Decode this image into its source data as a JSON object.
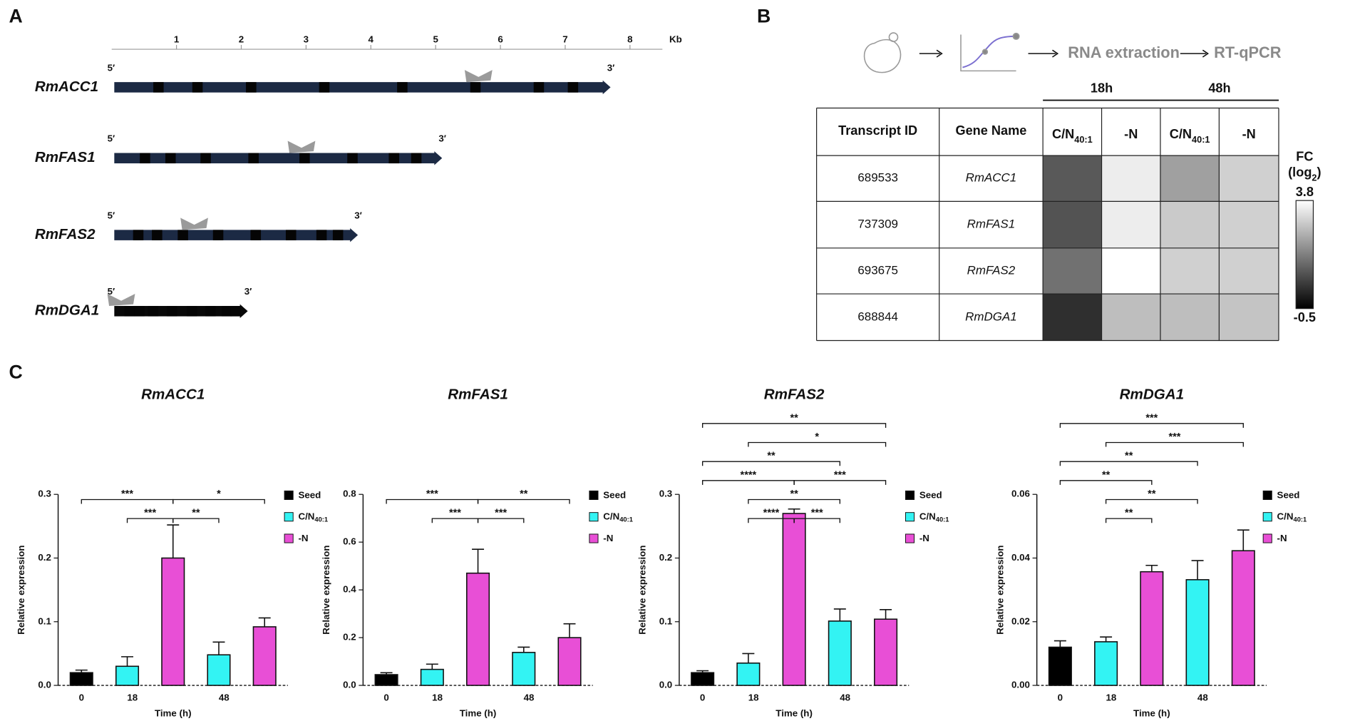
{
  "panel_labels": {
    "a": "A",
    "b": "B",
    "c": "C"
  },
  "gene_map": {
    "unit": "Kb",
    "scale_lim": [
      0,
      8.5
    ],
    "scale_ticks": [
      1,
      2,
      3,
      4,
      5,
      6,
      7,
      8
    ],
    "five_prime": "5′",
    "three_prime": "3′",
    "genes": [
      {
        "name": "RmACC1",
        "length_kb": 7.7
      },
      {
        "name": "RmFAS1",
        "length_kb": 5.1
      },
      {
        "name": "RmFAS2",
        "length_kb": 3.8
      },
      {
        "name": "RmDGA1",
        "length_kb": 2.1
      }
    ]
  },
  "workflow": {
    "steps": [
      "RNA extraction",
      "RT-qPCR"
    ]
  },
  "heatmap": {
    "groups": [
      "18h",
      "48h"
    ],
    "columns": {
      "id": "Transcript ID",
      "name": "Gene Name",
      "conditions": [
        {
          "main": "C/N",
          "sub": "40:1"
        },
        {
          "main": "-N"
        },
        {
          "main": "C/N",
          "sub": "40:1"
        },
        {
          "main": "-N"
        }
      ]
    },
    "rows": [
      {
        "id": "689533",
        "gene": "RmACC1",
        "values": [
          1.0,
          3.5,
          2.2,
          3.0
        ]
      },
      {
        "id": "737309",
        "gene": "RmFAS1",
        "values": [
          0.9,
          3.5,
          2.9,
          3.0
        ]
      },
      {
        "id": "693675",
        "gene": "RmFAS2",
        "values": [
          1.4,
          3.8,
          3.0,
          3.0
        ]
      },
      {
        "id": "688844",
        "gene": "RmDGA1",
        "values": [
          0.3,
          2.7,
          2.7,
          2.8
        ]
      }
    ],
    "colorbar": {
      "title": "FC",
      "unit": {
        "main": "(log",
        "sub": "2",
        "end": ")"
      },
      "clim": [
        -0.5,
        3.8
      ]
    }
  },
  "chart_data": [
    {
      "type": "bar",
      "title": "RmACC1",
      "xlabel": "Time (h)",
      "ylabel": "Relative expression",
      "legend": "right",
      "categories": [
        "0",
        "18",
        "48"
      ],
      "ylim": [
        0,
        0.3
      ],
      "yticks": [
        {
          "value": 0,
          "label": "0.0"
        },
        0.1,
        0.2,
        0.3
      ],
      "series": [
        {
          "name": "Seed",
          "color": "#000000",
          "values": [
            0.02,
            null,
            null
          ],
          "errors": [
            0.004,
            null,
            null
          ]
        },
        {
          "name": "C/N",
          "name_sub": "40:1",
          "color": "#33f3f3",
          "values": [
            null,
            0.03,
            0.048
          ],
          "errors": [
            null,
            0.015,
            0.02
          ]
        },
        {
          "name": "-N",
          "color": "#e84fd6",
          "values": [
            null,
            0.2,
            0.092
          ],
          "errors": [
            null,
            0.052,
            0.014
          ]
        }
      ],
      "significance": [
        [
          {
            "from": [
              0,
              0
            ],
            "to": [
              2,
              1
            ],
            "label": "***"
          },
          {
            "from": [
              2,
              1
            ],
            "to": [
              2,
              2
            ],
            "label": "*"
          }
        ],
        [
          {
            "from": [
              1,
              1
            ],
            "to": [
              2,
              1
            ],
            "label": "***"
          },
          {
            "from": [
              2,
              1
            ],
            "to": [
              1,
              2
            ],
            "label": "**"
          }
        ]
      ]
    },
    {
      "type": "bar",
      "title": "RmFAS1",
      "xlabel": "Time (h)",
      "ylabel": "Relative expression",
      "legend": "right",
      "categories": [
        "0",
        "18",
        "48"
      ],
      "ylim": [
        0,
        0.8
      ],
      "yticks": [
        {
          "value": 0,
          "label": "0.0"
        },
        0.2,
        0.4,
        0.6,
        0.8
      ],
      "series": [
        {
          "name": "Seed",
          "color": "#000000",
          "values": [
            0.045,
            null,
            null
          ],
          "errors": [
            0.008,
            null,
            null
          ]
        },
        {
          "name": "C/N",
          "name_sub": "40:1",
          "color": "#33f3f3",
          "values": [
            null,
            0.067,
            0.138
          ],
          "errors": [
            null,
            0.022,
            0.022
          ]
        },
        {
          "name": "-N",
          "color": "#e84fd6",
          "values": [
            null,
            0.47,
            0.2
          ],
          "errors": [
            null,
            0.1,
            0.058
          ]
        }
      ],
      "significance": [
        [
          {
            "from": [
              0,
              0
            ],
            "to": [
              2,
              1
            ],
            "label": "***"
          },
          {
            "from": [
              2,
              1
            ],
            "to": [
              2,
              2
            ],
            "label": "**"
          }
        ],
        [
          {
            "from": [
              1,
              1
            ],
            "to": [
              2,
              1
            ],
            "label": "***"
          },
          {
            "from": [
              2,
              1
            ],
            "to": [
              1,
              2
            ],
            "label": "***"
          }
        ]
      ]
    },
    {
      "type": "bar",
      "title": "RmFAS2",
      "xlabel": "Time (h)",
      "ylabel": "Relative expression",
      "legend": "right",
      "categories": [
        "0",
        "18",
        "48"
      ],
      "ylim": [
        0,
        0.3
      ],
      "yticks": [
        {
          "value": 0,
          "label": "0.0"
        },
        0.1,
        0.2,
        0.3
      ],
      "series": [
        {
          "name": "Seed",
          "color": "#000000",
          "values": [
            0.02,
            null,
            null
          ],
          "errors": [
            0.003,
            null,
            null
          ]
        },
        {
          "name": "C/N",
          "name_sub": "40:1",
          "color": "#33f3f3",
          "values": [
            null,
            0.035,
            0.101
          ],
          "errors": [
            null,
            0.015,
            0.019
          ]
        },
        {
          "name": "-N",
          "color": "#e84fd6",
          "values": [
            null,
            0.27,
            0.104
          ],
          "errors": [
            null,
            0.007,
            0.015
          ]
        }
      ],
      "significance": [
        [
          {
            "from": [
              0,
              0
            ],
            "to": [
              2,
              2
            ],
            "label": "**"
          }
        ],
        [
          {
            "from": [
              1,
              1
            ],
            "to": [
              2,
              2
            ],
            "label": "*"
          }
        ],
        [
          {
            "from": [
              0,
              0
            ],
            "to": [
              1,
              2
            ],
            "label": "**"
          }
        ],
        [
          {
            "from": [
              0,
              0
            ],
            "to": [
              2,
              1
            ],
            "label": "****"
          },
          {
            "from": [
              2,
              1
            ],
            "to": [
              2,
              2
            ],
            "label": "***"
          }
        ],
        [
          {
            "from": [
              1,
              1
            ],
            "to": [
              1,
              2
            ],
            "label": "**"
          }
        ],
        [
          {
            "from": [
              1,
              1
            ],
            "to": [
              2,
              1
            ],
            "label": "****"
          },
          {
            "from": [
              2,
              1
            ],
            "to": [
              1,
              2
            ],
            "label": "***"
          }
        ]
      ]
    },
    {
      "type": "bar",
      "title": "RmDGA1",
      "xlabel": "Time (h)",
      "ylabel": "Relative expression",
      "legend": "right",
      "categories": [
        "0",
        "18",
        "48"
      ],
      "ylim": [
        0,
        0.06
      ],
      "yticks": [
        {
          "value": 0,
          "label": "0.00"
        },
        {
          "value": 0.02,
          "label": "0.02"
        },
        {
          "value": 0.04,
          "label": "0.04"
        },
        {
          "value": 0.06,
          "label": "0.06"
        }
      ],
      "series": [
        {
          "name": "Seed",
          "color": "#000000",
          "values": [
            0.012,
            null,
            null
          ],
          "errors": [
            0.002,
            null,
            null
          ]
        },
        {
          "name": "C/N",
          "name_sub": "40:1",
          "color": "#33f3f3",
          "values": [
            null,
            0.0137,
            0.0332
          ],
          "errors": [
            null,
            0.0015,
            0.006
          ]
        },
        {
          "name": "-N",
          "color": "#e84fd6",
          "values": [
            null,
            0.0357,
            0.0423
          ],
          "errors": [
            null,
            0.002,
            0.0065
          ]
        }
      ],
      "significance": [
        [
          {
            "from": [
              0,
              0
            ],
            "to": [
              2,
              2
            ],
            "label": "***"
          }
        ],
        [
          {
            "from": [
              1,
              1
            ],
            "to": [
              2,
              2
            ],
            "label": "***"
          }
        ],
        [
          {
            "from": [
              0,
              0
            ],
            "to": [
              1,
              2
            ],
            "label": "**"
          }
        ],
        [
          {
            "from": [
              0,
              0
            ],
            "to": [
              2,
              1
            ],
            "label": "**"
          }
        ],
        [
          {
            "from": [
              1,
              1
            ],
            "to": [
              1,
              2
            ],
            "label": "**"
          }
        ],
        [
          {
            "from": [
              1,
              1
            ],
            "to": [
              2,
              1
            ],
            "label": "**"
          }
        ]
      ]
    }
  ]
}
